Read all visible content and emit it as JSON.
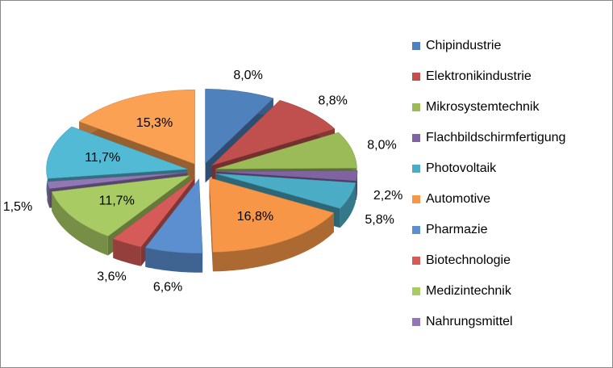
{
  "chart_data": {
    "type": "pie3d",
    "categories": [
      "Chipindustrie",
      "Elektronikindustrie",
      "Mikrosystemtechnik",
      "Flachbildschirmfertigung",
      "Photovoltaik",
      "Automotive",
      "Pharmazie",
      "Biotechnologie",
      "Medizintechnik",
      "Nahrungsmittel",
      null,
      null
    ],
    "values": [
      8.0,
      8.8,
      8.0,
      2.2,
      5.8,
      16.8,
      6.6,
      3.6,
      11.7,
      1.5,
      11.7,
      15.3
    ],
    "value_labels": [
      "8,0%",
      "8,8%",
      "8,0%",
      "2,2%",
      "5,8%",
      "16,8%",
      "6,6%",
      "3,6%",
      "11,7%",
      "1,5%",
      "11,7%",
      "15,3%"
    ],
    "colors": [
      "#4f81bd",
      "#c0504d",
      "#9bbb59",
      "#8064a2",
      "#4bacc6",
      "#f79646",
      "#5b8fd0",
      "#d65b58",
      "#a9cb63",
      "#9277b5",
      "#53bad6",
      "#fba153"
    ]
  }
}
